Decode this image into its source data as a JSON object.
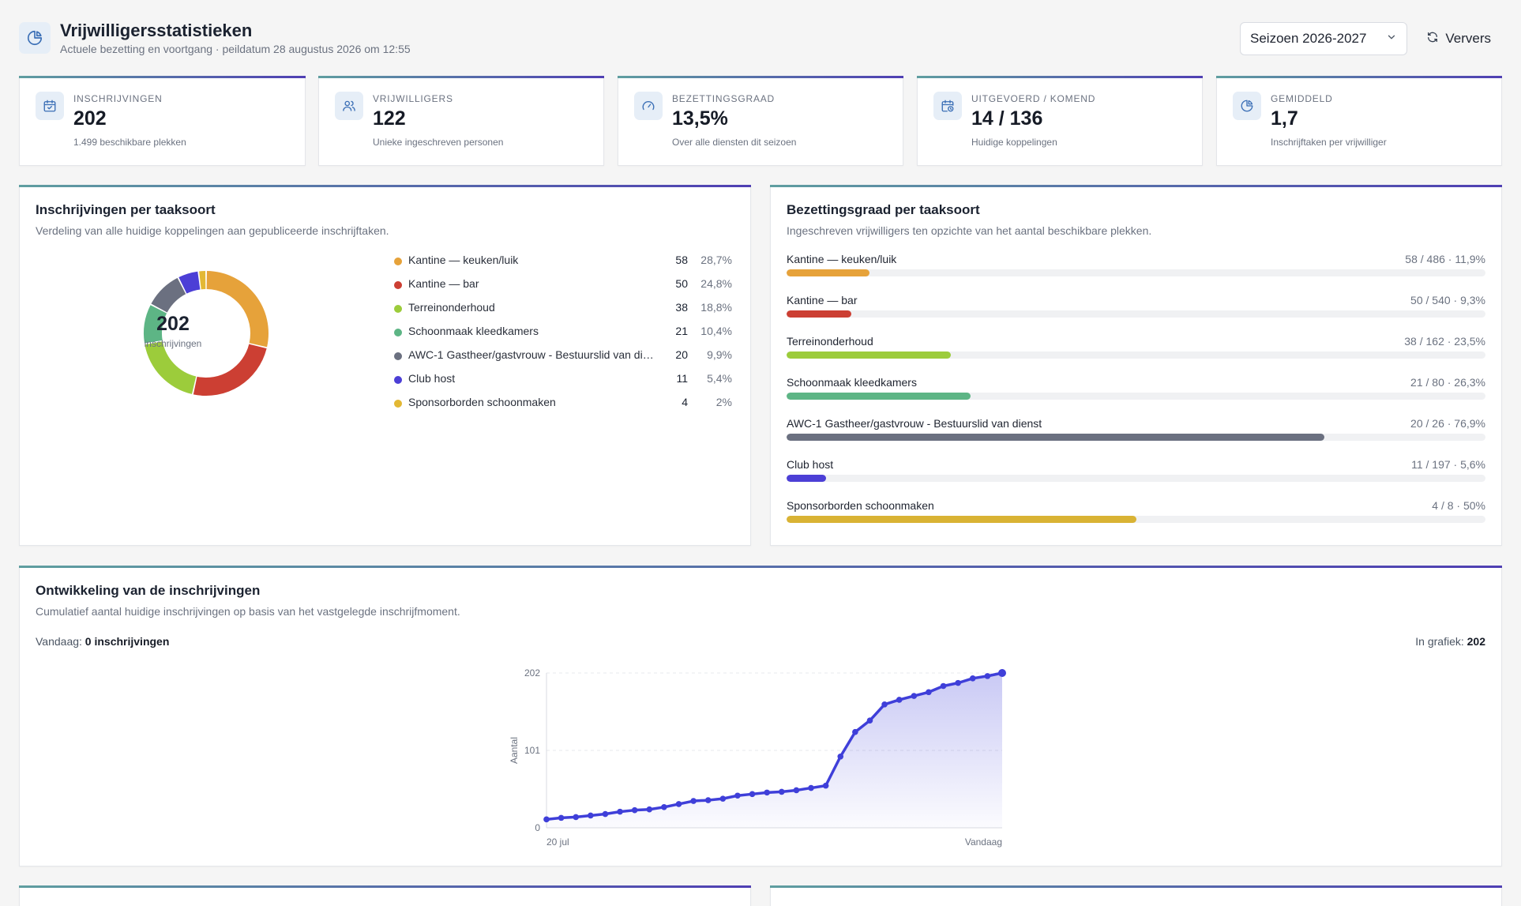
{
  "header": {
    "title": "Vrijwilligersstatistieken",
    "subtitle": "Actuele bezetting en voortgang · peildatum 28 augustus 2026 om 12:55",
    "season_select": "Seizoen 2026-2027",
    "refresh_label": "Ververs",
    "icons": {
      "header": "pie-chart-icon",
      "select": "chevron-down-icon",
      "refresh": "refresh-icon"
    }
  },
  "stats": [
    {
      "label": "Inschrijvingen",
      "value": "202",
      "sub": "1.499 beschikbare plekken",
      "icon": "calendar-check-icon"
    },
    {
      "label": "Vrijwilligers",
      "value": "122",
      "sub": "Unieke ingeschreven personen",
      "icon": "users-icon"
    },
    {
      "label": "Bezettingsgraad",
      "value": "13,5%",
      "sub": "Over alle diensten dit seizoen",
      "icon": "gauge-icon"
    },
    {
      "label": "Uitgevoerd / komend",
      "value": "14 / 136",
      "sub": "Huidige koppelingen",
      "icon": "calendar-clock-icon"
    },
    {
      "label": "Gemiddeld",
      "value": "1,7",
      "sub": "Inschrijftaken per vrijwilliger",
      "icon": "pie-chart-icon"
    }
  ],
  "per_task": {
    "title": "Inschrijvingen per taaksoort",
    "subtitle": "Verdeling van alle huidige koppelingen aan gepubliceerde inschrijftaken.",
    "center_value": "202",
    "center_label": "inschrijvingen",
    "items": [
      {
        "name": "Kantine — keuken/luik",
        "count": "58",
        "pct": "28,7%",
        "color": "#e6a23a"
      },
      {
        "name": "Kantine — bar",
        "count": "50",
        "pct": "24,8%",
        "color": "#cc3f33"
      },
      {
        "name": "Terreinonderhoud",
        "count": "38",
        "pct": "18,8%",
        "color": "#9ccc3b"
      },
      {
        "name": "Schoonmaak kleedkamers",
        "count": "21",
        "pct": "10,4%",
        "color": "#5db585"
      },
      {
        "name": "AWC-1 Gastheer/gastvrouw - Bestuurslid van dienst",
        "count": "20",
        "pct": "9,9%",
        "color": "#6b7080"
      },
      {
        "name": "Club host",
        "count": "11",
        "pct": "5,4%",
        "color": "#4c3fd6"
      },
      {
        "name": "Sponsorborden schoonmaken",
        "count": "4",
        "pct": "2%",
        "color": "#e3b834"
      }
    ]
  },
  "occupancy": {
    "title": "Bezettingsgraad per taaksoort",
    "subtitle": "Ingeschreven vrijwilligers ten opzichte van het aantal beschikbare plekken.",
    "items": [
      {
        "name": "Kantine — keuken/luik",
        "stat": "58 / 486 · 11,9%",
        "fraction": 0.119,
        "color": "#e6a23a"
      },
      {
        "name": "Kantine — bar",
        "stat": "50 / 540 · 9,3%",
        "fraction": 0.093,
        "color": "#cc3f33"
      },
      {
        "name": "Terreinonderhoud",
        "stat": "38 / 162 · 23,5%",
        "fraction": 0.235,
        "color": "#9ccc3b"
      },
      {
        "name": "Schoonmaak kleedkamers",
        "stat": "21 / 80 · 26,3%",
        "fraction": 0.263,
        "color": "#5db585"
      },
      {
        "name": "AWC-1 Gastheer/gastvrouw - Bestuurslid van dienst",
        "stat": "20 / 26 · 76,9%",
        "fraction": 0.769,
        "color": "#6b7080"
      },
      {
        "name": "Club host",
        "stat": "11 / 197 · 5,6%",
        "fraction": 0.056,
        "color": "#4c3fd6"
      },
      {
        "name": "Sponsorborden schoonmaken",
        "stat": "4 / 8 · 50%",
        "fraction": 0.5,
        "color": "#d9b334"
      }
    ]
  },
  "development": {
    "title": "Ontwikkeling van de inschrijvingen",
    "subtitle": "Cumulatief aantal huidige inschrijvingen op basis van het vastgelegde inschrijfmoment.",
    "today_label": "Vandaag:",
    "today_value": "0 inschrijvingen",
    "in_chart_label": "In grafiek:",
    "in_chart_value": "202"
  },
  "chart_data": [
    {
      "type": "pie",
      "categories": [
        "Kantine — keuken/luik",
        "Kantine — bar",
        "Terreinonderhoud",
        "Schoonmaak kleedkamers",
        "AWC-1 Gastheer/gastvrouw - Bestuurslid van dienst",
        "Club host",
        "Sponsorborden schoonmaken"
      ],
      "values": [
        58,
        50,
        38,
        21,
        20,
        11,
        4
      ],
      "colors": [
        "#e6a23a",
        "#cc3f33",
        "#9ccc3b",
        "#5db585",
        "#6b7080",
        "#4c3fd6",
        "#e3b834"
      ]
    },
    {
      "type": "area",
      "ylabel": "Aantal",
      "ylim": [
        0,
        202
      ],
      "yticks": [
        "0",
        "101",
        "202"
      ],
      "xticks": [
        "20 jul",
        "Vandaag"
      ],
      "color": "#3f3fd9",
      "series": [
        {
          "values": [
            11,
            13,
            14,
            16,
            18,
            21,
            23,
            24,
            27,
            31,
            35,
            36,
            38,
            42,
            44,
            46,
            47,
            49,
            52,
            55,
            93,
            125,
            140,
            161,
            167,
            172,
            177,
            185,
            189,
            195,
            198,
            202
          ]
        }
      ]
    }
  ]
}
